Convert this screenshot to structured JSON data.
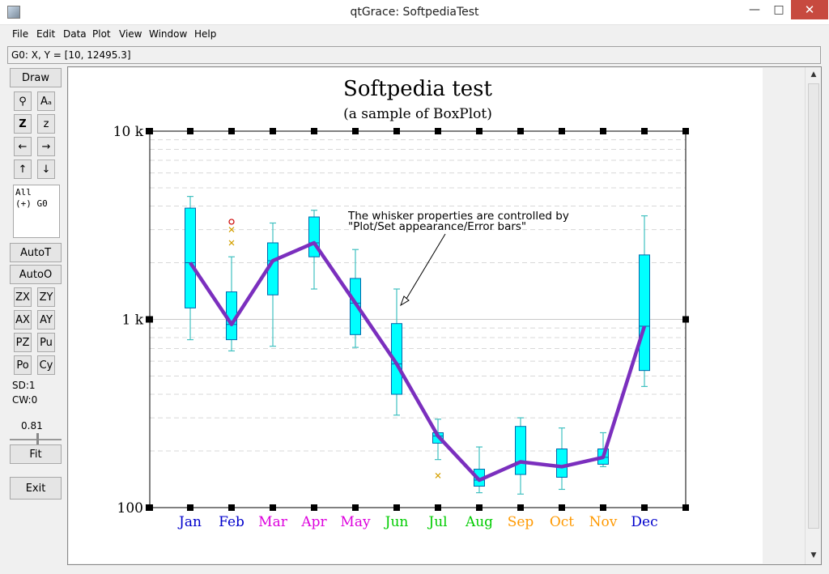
{
  "window": {
    "title": "qtGrace: SoftpediaTest",
    "minimize_glyph": "—",
    "maximize_glyph": "□",
    "close_glyph": "✕"
  },
  "menu": [
    "File",
    "Edit",
    "Data",
    "Plot",
    "View",
    "Window",
    "Help"
  ],
  "locator": "G0: X, Y = [10, 12495.3]",
  "toolbar": {
    "draw": "Draw",
    "zoom_icon": "⚲",
    "text_icon": "Aₐ",
    "z_big": "Z",
    "z_small": "z",
    "left": "←",
    "right": "→",
    "up": "↑",
    "down": "↓",
    "sets_all": "All",
    "sets_g0": "(+) G0",
    "autot": "AutoT",
    "autoo": "AutoO",
    "zx": "ZX",
    "zy": "ZY",
    "ax": "AX",
    "ay": "AY",
    "pz": "PZ",
    "pu": "Pu",
    "po": "Po",
    "cy": "Cy",
    "sd": "SD:1",
    "cw": "CW:0",
    "zoom_value": "0.81",
    "fit": "Fit",
    "exit": "Exit"
  },
  "colors": {
    "box_fill": "#00ffff",
    "box_stroke": "#0066aa",
    "median_line": "#7b2fbe",
    "whisker": "#40c0c0",
    "outlier_cross": "#d4a000",
    "outlier_circle": "#cc0000"
  },
  "chart_data": {
    "type": "box",
    "title": "Softpedia test",
    "subtitle": "(a sample of BoxPlot)",
    "yscale": "log",
    "ylim": [
      100,
      10000
    ],
    "yticks": [
      "100",
      "1 k",
      "10 k"
    ],
    "grid": true,
    "categories": [
      {
        "label": "Jan",
        "color": "#0000cc"
      },
      {
        "label": "Feb",
        "color": "#0000cc"
      },
      {
        "label": "Mar",
        "color": "#dd00dd"
      },
      {
        "label": "Apr",
        "color": "#dd00dd"
      },
      {
        "label": "May",
        "color": "#dd00dd"
      },
      {
        "label": "Jun",
        "color": "#00cc00"
      },
      {
        "label": "Jul",
        "color": "#00cc00"
      },
      {
        "label": "Aug",
        "color": "#00cc00"
      },
      {
        "label": "Sep",
        "color": "#ff9900"
      },
      {
        "label": "Oct",
        "color": "#ff9900"
      },
      {
        "label": "Nov",
        "color": "#ff9900"
      },
      {
        "label": "Dec",
        "color": "#0000cc"
      }
    ],
    "boxes": [
      {
        "min": 780,
        "q1": 1150,
        "median": 2000,
        "q3": 3900,
        "max": 4500
      },
      {
        "min": 680,
        "q1": 780,
        "median": 940,
        "q3": 1400,
        "max": 2150
      },
      {
        "min": 720,
        "q1": 1350,
        "median": 2050,
        "q3": 2550,
        "max": 3250
      },
      {
        "min": 1450,
        "q1": 2150,
        "median": 2550,
        "q3": 3500,
        "max": 3800
      },
      {
        "min": 710,
        "q1": 830,
        "median": 1220,
        "q3": 1650,
        "max": 2350
      },
      {
        "min": 310,
        "q1": 400,
        "median": 580,
        "q3": 950,
        "max": 1450
      },
      {
        "min": 180,
        "q1": 220,
        "median": 240,
        "q3": 250,
        "max": 295
      },
      {
        "min": 120,
        "q1": 130,
        "median": 140,
        "q3": 160,
        "max": 210
      },
      {
        "min": 118,
        "q1": 150,
        "median": 175,
        "q3": 270,
        "max": 300
      },
      {
        "min": 125,
        "q1": 145,
        "median": 165,
        "q3": 205,
        "max": 265
      },
      {
        "min": 165,
        "q1": 170,
        "median": 185,
        "q3": 205,
        "max": 250
      },
      {
        "min": 440,
        "q1": 535,
        "median": 920,
        "q3": 2200,
        "max": 3550
      }
    ],
    "median_line": [
      2000,
      940,
      2050,
      2550,
      1220,
      580,
      240,
      140,
      175,
      165,
      185,
      920
    ],
    "outliers": [
      {
        "category": 1,
        "value": 3300,
        "marker": "circle"
      },
      {
        "category": 1,
        "value": 3000,
        "marker": "cross"
      },
      {
        "category": 1,
        "value": 2550,
        "marker": "cross"
      },
      {
        "category": 6,
        "value": 148,
        "marker": "cross"
      }
    ],
    "annotation": {
      "line1": "The whisker properties are controlled by",
      "line2": "\"Plot/Set appearance/Error bars\""
    }
  }
}
